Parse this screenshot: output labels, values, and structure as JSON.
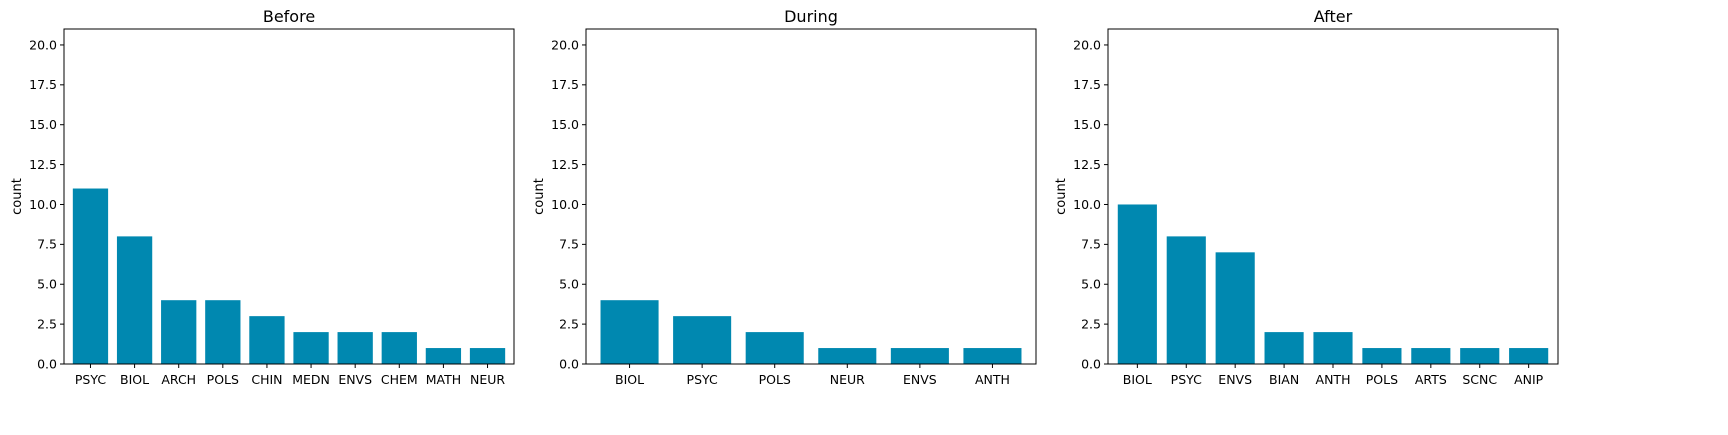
{
  "figure": {
    "background": "#ffffff"
  },
  "chart_data": [
    {
      "type": "bar",
      "title": "Before",
      "xlabel": "",
      "ylabel": "count",
      "ylim": [
        0,
        21
      ],
      "yticks": [
        0.0,
        2.5,
        5.0,
        7.5,
        10.0,
        12.5,
        15.0,
        17.5,
        20.0
      ],
      "ytick_labels": [
        "0.0",
        "2.5",
        "5.0",
        "7.5",
        "10.0",
        "12.5",
        "15.0",
        "17.5",
        "20.0"
      ],
      "categories": [
        "PSYC",
        "BIOL",
        "ARCH",
        "POLS",
        "CHIN",
        "MEDN",
        "ENVS",
        "CHEM",
        "MATH",
        "NEUR"
      ],
      "values": [
        11,
        8,
        4,
        4,
        3,
        2,
        2,
        2,
        1,
        1
      ],
      "color": "#0088b0",
      "grid": false
    },
    {
      "type": "bar",
      "title": "During",
      "xlabel": "",
      "ylabel": "count",
      "ylim": [
        0,
        21
      ],
      "yticks": [
        0.0,
        2.5,
        5.0,
        7.5,
        10.0,
        12.5,
        15.0,
        17.5,
        20.0
      ],
      "ytick_labels": [
        "0.0",
        "2.5",
        "5.0",
        "7.5",
        "10.0",
        "12.5",
        "15.0",
        "17.5",
        "20.0"
      ],
      "categories": [
        "BIOL",
        "PSYC",
        "POLS",
        "NEUR",
        "ENVS",
        "ANTH"
      ],
      "values": [
        4,
        3,
        2,
        1,
        1,
        1
      ],
      "color": "#0088b0",
      "grid": false
    },
    {
      "type": "bar",
      "title": "After",
      "xlabel": "",
      "ylabel": "count",
      "ylim": [
        0,
        21
      ],
      "yticks": [
        0.0,
        2.5,
        5.0,
        7.5,
        10.0,
        12.5,
        15.0,
        17.5,
        20.0
      ],
      "ytick_labels": [
        "0.0",
        "2.5",
        "5.0",
        "7.5",
        "10.0",
        "12.5",
        "15.0",
        "17.5",
        "20.0"
      ],
      "categories": [
        "BIOL",
        "PSYC",
        "ENVS",
        "BIAN",
        "ANTH",
        "POLS",
        "ARTS",
        "SCNC",
        "ANIP"
      ],
      "values": [
        10,
        8,
        7,
        2,
        2,
        1,
        1,
        1,
        1
      ],
      "color": "#0088b0",
      "grid": false
    }
  ]
}
